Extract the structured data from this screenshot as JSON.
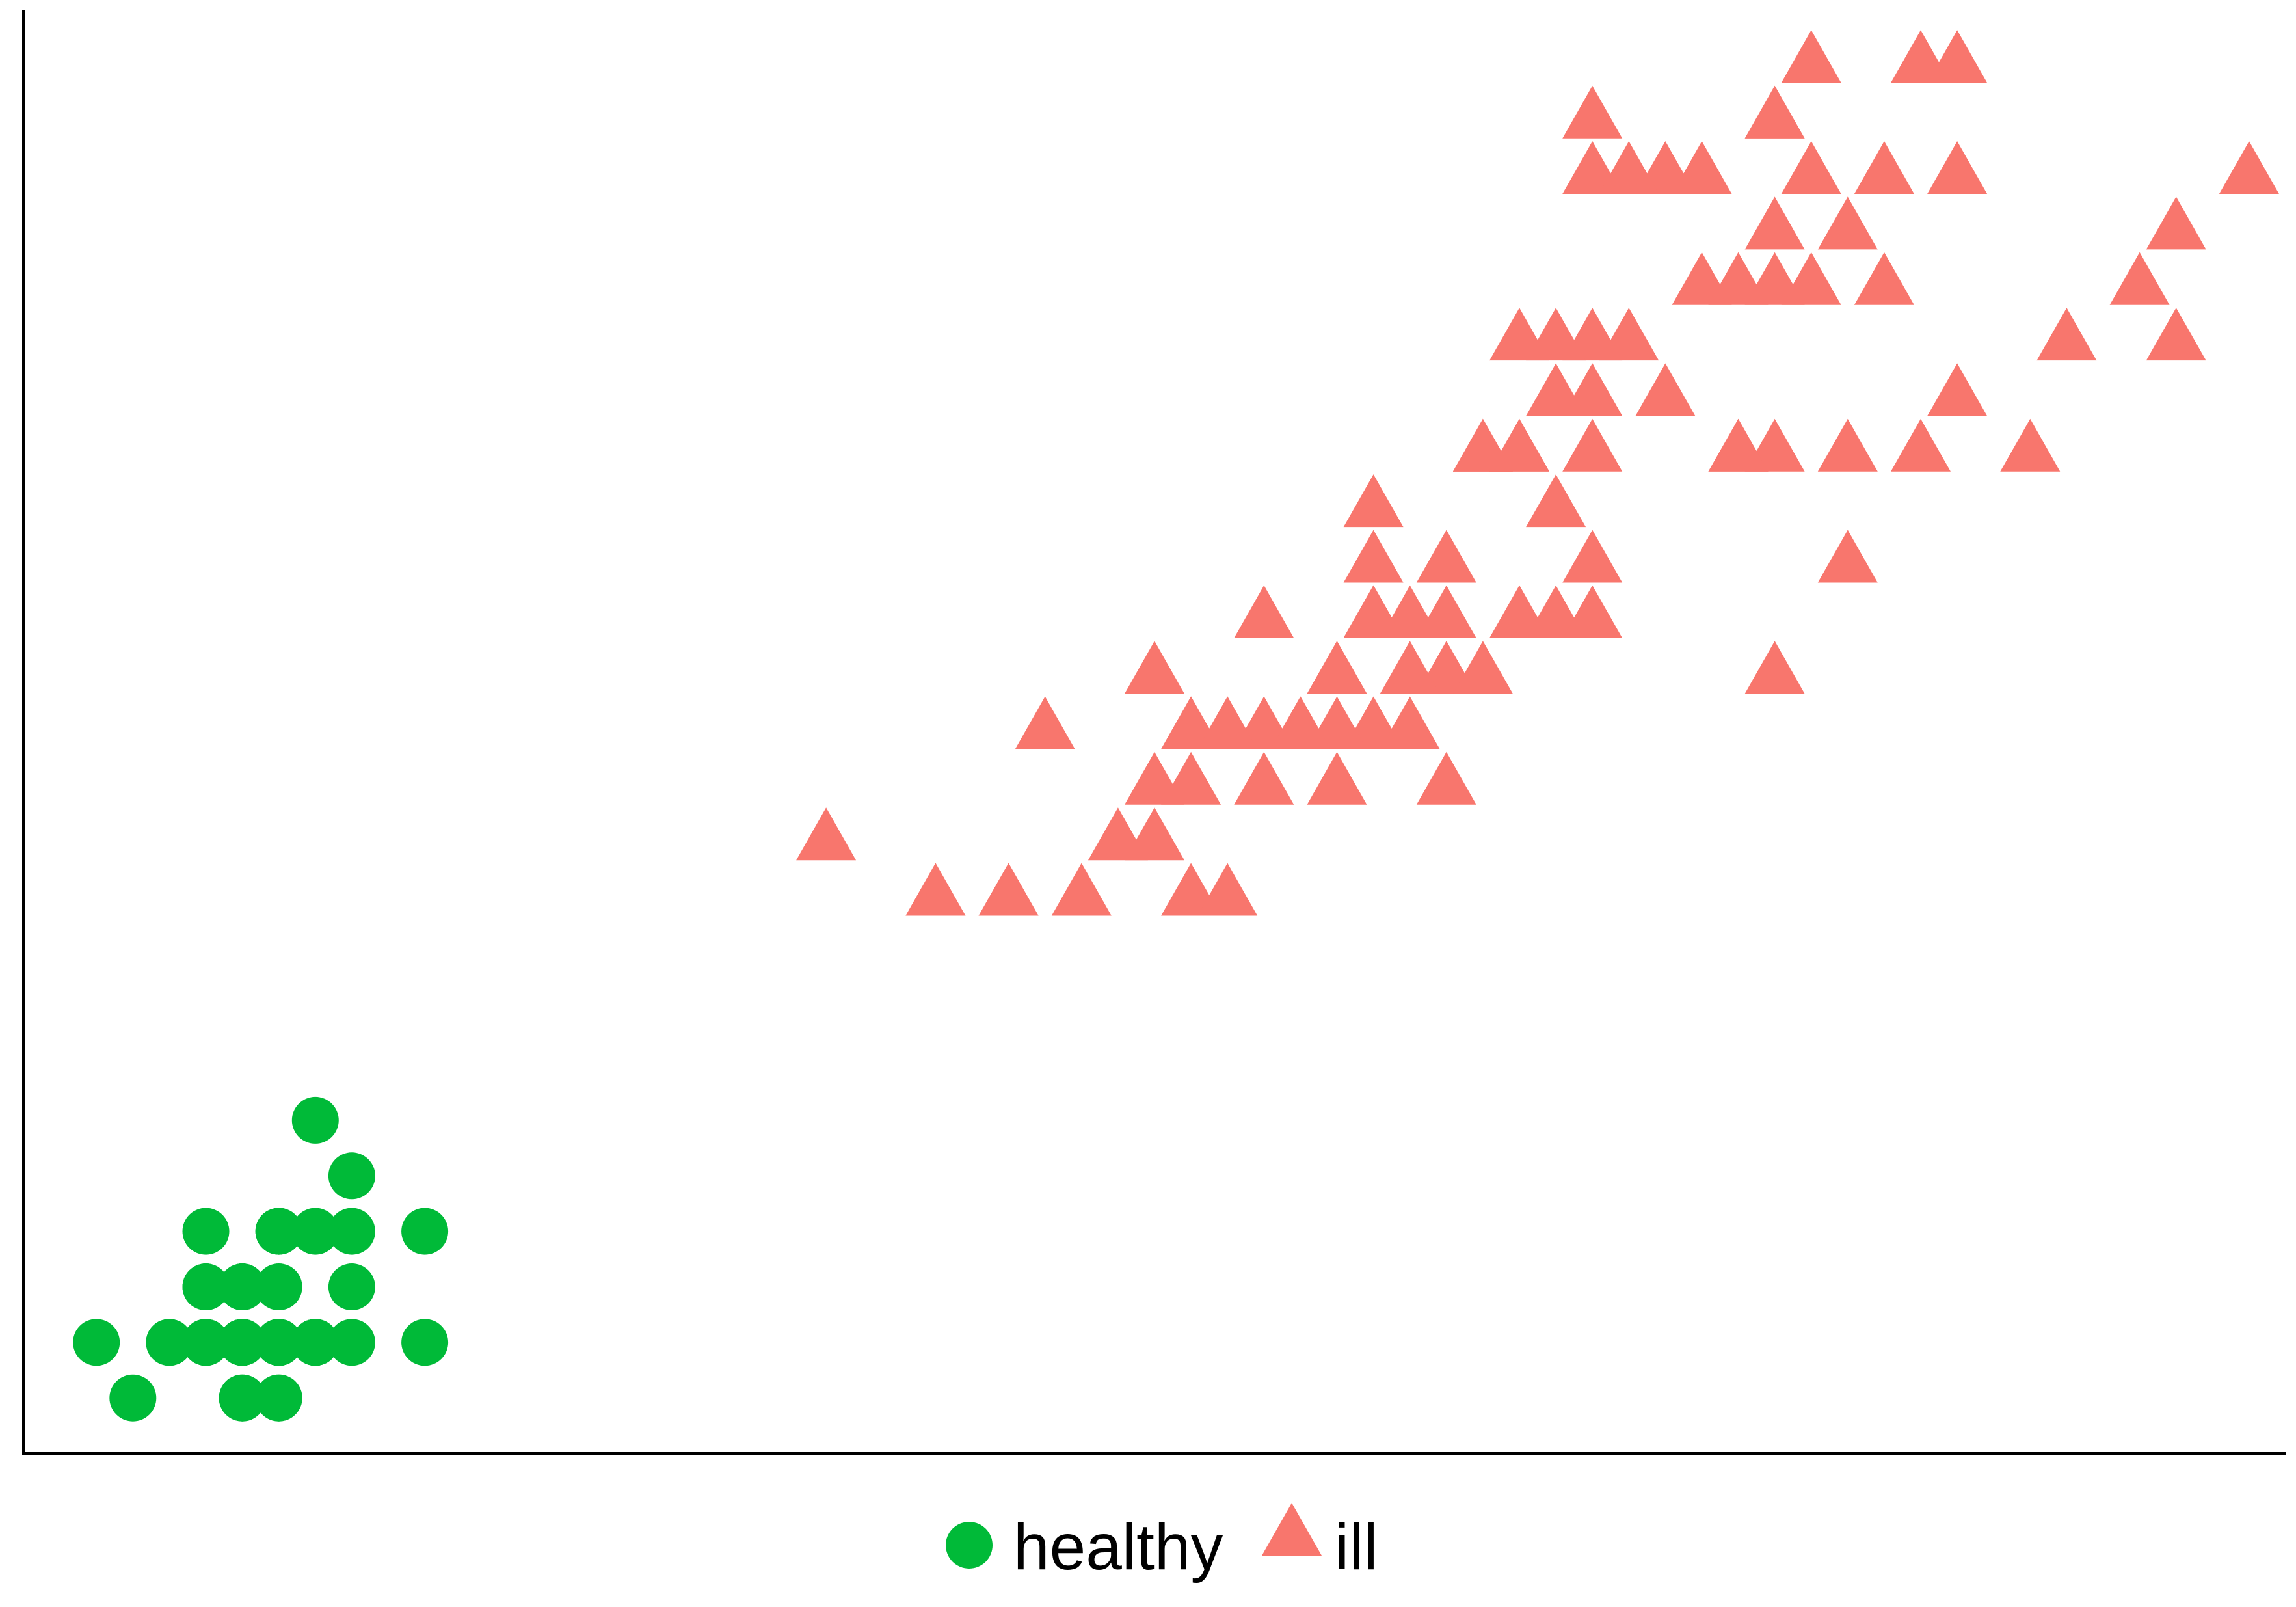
{
  "chart_data": {
    "type": "scatter",
    "title": "",
    "xlabel": "",
    "ylabel": "",
    "xlim": [
      0.8,
      7.0
    ],
    "ylim": [
      0.0,
      2.6
    ],
    "grid": false,
    "legend_position": "bottom",
    "series": [
      {
        "name": "healthy",
        "marker": "circle",
        "color": "#00BA38",
        "points": [
          [
            1.4,
            0.2
          ],
          [
            1.4,
            0.2
          ],
          [
            1.3,
            0.2
          ],
          [
            1.5,
            0.2
          ],
          [
            1.4,
            0.2
          ],
          [
            1.7,
            0.4
          ],
          [
            1.4,
            0.3
          ],
          [
            1.5,
            0.2
          ],
          [
            1.4,
            0.2
          ],
          [
            1.5,
            0.1
          ],
          [
            1.5,
            0.2
          ],
          [
            1.6,
            0.2
          ],
          [
            1.4,
            0.1
          ],
          [
            1.1,
            0.1
          ],
          [
            1.2,
            0.2
          ],
          [
            1.5,
            0.4
          ],
          [
            1.3,
            0.4
          ],
          [
            1.4,
            0.3
          ],
          [
            1.7,
            0.3
          ],
          [
            1.5,
            0.3
          ],
          [
            1.7,
            0.2
          ],
          [
            1.5,
            0.4
          ],
          [
            1.0,
            0.2
          ],
          [
            1.7,
            0.5
          ],
          [
            1.9,
            0.2
          ],
          [
            1.6,
            0.2
          ],
          [
            1.6,
            0.4
          ],
          [
            1.5,
            0.2
          ],
          [
            1.4,
            0.2
          ],
          [
            1.6,
            0.2
          ],
          [
            1.6,
            0.2
          ],
          [
            1.5,
            0.4
          ],
          [
            1.5,
            0.1
          ],
          [
            1.4,
            0.2
          ],
          [
            1.5,
            0.2
          ],
          [
            1.2,
            0.2
          ],
          [
            1.3,
            0.2
          ],
          [
            1.4,
            0.1
          ],
          [
            1.3,
            0.2
          ],
          [
            1.5,
            0.2
          ],
          [
            1.3,
            0.3
          ],
          [
            1.3,
            0.3
          ],
          [
            1.3,
            0.2
          ],
          [
            1.6,
            0.6
          ],
          [
            1.9,
            0.4
          ],
          [
            1.4,
            0.3
          ],
          [
            1.6,
            0.2
          ],
          [
            1.4,
            0.2
          ],
          [
            1.5,
            0.2
          ],
          [
            1.4,
            0.2
          ]
        ]
      },
      {
        "name": "ill",
        "marker": "triangle",
        "color": "#F8766D",
        "points": [
          [
            4.7,
            1.4
          ],
          [
            4.5,
            1.5
          ],
          [
            4.9,
            1.5
          ],
          [
            4.0,
            1.3
          ],
          [
            4.6,
            1.5
          ],
          [
            4.5,
            1.3
          ],
          [
            4.7,
            1.6
          ],
          [
            3.3,
            1.0
          ],
          [
            4.6,
            1.3
          ],
          [
            3.9,
            1.4
          ],
          [
            3.5,
            1.0
          ],
          [
            4.2,
            1.5
          ],
          [
            4.0,
            1.0
          ],
          [
            4.7,
            1.4
          ],
          [
            3.6,
            1.3
          ],
          [
            4.4,
            1.4
          ],
          [
            4.5,
            1.5
          ],
          [
            4.1,
            1.0
          ],
          [
            4.5,
            1.5
          ],
          [
            3.9,
            1.1
          ],
          [
            4.8,
            1.8
          ],
          [
            4.0,
            1.3
          ],
          [
            4.9,
            1.5
          ],
          [
            4.7,
            1.2
          ],
          [
            4.3,
            1.3
          ],
          [
            4.4,
            1.4
          ],
          [
            4.8,
            1.4
          ],
          [
            5.0,
            1.7
          ],
          [
            4.5,
            1.5
          ],
          [
            3.5,
            1.0
          ],
          [
            3.8,
            1.1
          ],
          [
            3.7,
            1.0
          ],
          [
            3.9,
            1.2
          ],
          [
            5.1,
            1.6
          ],
          [
            4.5,
            1.5
          ],
          [
            4.5,
            1.6
          ],
          [
            4.7,
            1.5
          ],
          [
            4.4,
            1.3
          ],
          [
            4.1,
            1.3
          ],
          [
            4.0,
            1.3
          ],
          [
            4.4,
            1.2
          ],
          [
            4.6,
            1.4
          ],
          [
            4.0,
            1.2
          ],
          [
            3.3,
            1.0
          ],
          [
            4.2,
            1.3
          ],
          [
            4.2,
            1.2
          ],
          [
            4.2,
            1.3
          ],
          [
            4.3,
            1.3
          ],
          [
            3.0,
            1.1
          ],
          [
            4.1,
            1.3
          ],
          [
            6.0,
            2.5
          ],
          [
            5.1,
            1.9
          ],
          [
            5.9,
            2.1
          ],
          [
            5.6,
            1.8
          ],
          [
            5.8,
            2.2
          ],
          [
            6.6,
            2.1
          ],
          [
            4.5,
            1.7
          ],
          [
            6.3,
            1.8
          ],
          [
            5.8,
            1.8
          ],
          [
            6.1,
            2.5
          ],
          [
            5.1,
            2.0
          ],
          [
            5.3,
            1.9
          ],
          [
            5.5,
            2.1
          ],
          [
            5.0,
            2.0
          ],
          [
            5.1,
            2.4
          ],
          [
            5.3,
            2.3
          ],
          [
            5.5,
            1.8
          ],
          [
            6.7,
            2.2
          ],
          [
            6.9,
            2.3
          ],
          [
            5.0,
            1.5
          ],
          [
            5.7,
            2.3
          ],
          [
            4.9,
            2.0
          ],
          [
            6.7,
            2.0
          ],
          [
            4.9,
            1.8
          ],
          [
            5.7,
            2.1
          ],
          [
            6.0,
            1.8
          ],
          [
            4.8,
            1.8
          ],
          [
            4.9,
            1.8
          ],
          [
            5.6,
            2.1
          ],
          [
            5.8,
            1.6
          ],
          [
            6.1,
            1.9
          ],
          [
            6.4,
            2.0
          ],
          [
            5.6,
            2.2
          ],
          [
            5.1,
            1.5
          ],
          [
            5.6,
            1.4
          ],
          [
            6.1,
            2.3
          ],
          [
            5.6,
            2.4
          ],
          [
            5.5,
            1.8
          ],
          [
            4.8,
            1.8
          ],
          [
            5.4,
            2.1
          ],
          [
            5.6,
            2.4
          ],
          [
            5.1,
            2.3
          ],
          [
            5.1,
            1.9
          ],
          [
            5.9,
            2.3
          ],
          [
            5.7,
            2.5
          ],
          [
            5.2,
            2.3
          ],
          [
            5.0,
            1.9
          ],
          [
            5.2,
            2.0
          ],
          [
            5.4,
            2.3
          ],
          [
            5.1,
            1.8
          ]
        ]
      }
    ]
  }
}
